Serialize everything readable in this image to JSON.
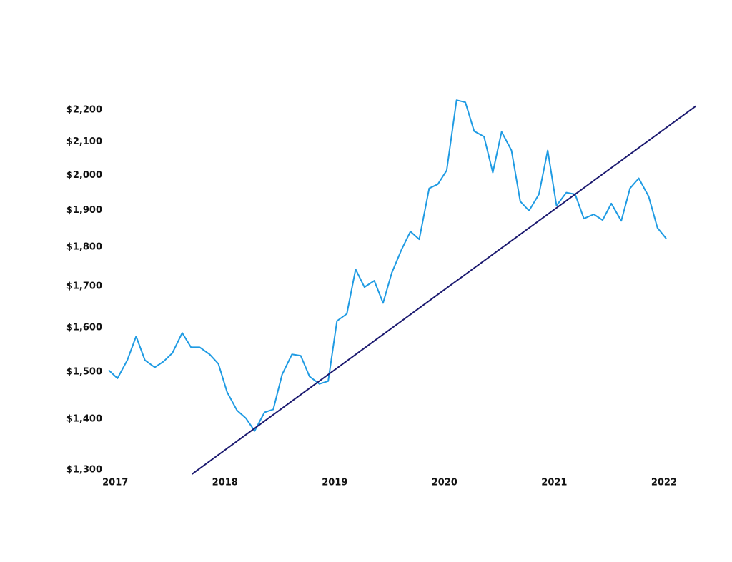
{
  "chart_data": {
    "type": "line",
    "yscale": "log",
    "xlim": [
      2016.94,
      2022.3
    ],
    "ylim": [
      1300,
      2200
    ],
    "xticks": [
      2017,
      2018,
      2019,
      2020,
      2021,
      2022
    ],
    "yticks": [
      {
        "value": 1300,
        "label": "$1,300"
      },
      {
        "value": 1400,
        "label": "$1,400"
      },
      {
        "value": 1500,
        "label": "$1,500"
      },
      {
        "value": 1600,
        "label": "$1,600"
      },
      {
        "value": 1700,
        "label": "$1,700"
      },
      {
        "value": 1800,
        "label": "$1,800"
      },
      {
        "value": 1900,
        "label": "$1,900"
      },
      {
        "value": 2000,
        "label": "$2,000"
      },
      {
        "value": 2100,
        "label": "$2,100"
      },
      {
        "value": 2200,
        "label": "$2,200"
      }
    ],
    "series": [
      {
        "color": "#1f9be3",
        "x": [
          2016.94,
          2017.02,
          2017.11,
          2017.19,
          2017.27,
          2017.36,
          2017.44,
          2017.52,
          2017.61,
          2017.69,
          2017.77,
          2017.86,
          2017.94,
          2018.02,
          2018.11,
          2018.19,
          2018.27,
          2018.36,
          2018.44,
          2018.52,
          2018.61,
          2018.69,
          2018.77,
          2018.86,
          2018.94,
          2019.02,
          2019.11,
          2019.19,
          2019.27,
          2019.36,
          2019.44,
          2019.52,
          2019.61,
          2019.69,
          2019.77,
          2019.86,
          2019.94,
          2020.02,
          2020.11,
          2020.19,
          2020.27,
          2020.36,
          2020.44,
          2020.52,
          2020.61,
          2020.69,
          2020.77,
          2020.86,
          2020.94,
          2021.02,
          2021.11,
          2021.19,
          2021.27,
          2021.36,
          2021.44,
          2021.52,
          2021.61,
          2021.69,
          2021.77,
          2021.86,
          2021.94,
          2022.02
        ],
        "values": [
          1504,
          1486,
          1526,
          1580,
          1526,
          1510,
          1523,
          1542,
          1588,
          1555,
          1555,
          1539,
          1518,
          1456,
          1418,
          1402,
          1376,
          1414,
          1420,
          1494,
          1539,
          1536,
          1490,
          1474,
          1480,
          1616,
          1633,
          1743,
          1698,
          1714,
          1659,
          1734,
          1795,
          1842,
          1821,
          1962,
          1974,
          2014,
          2232,
          2225,
          2133,
          2116,
          2008,
          2131,
          2074,
          1925,
          1899,
          1945,
          2074,
          1913,
          1950,
          1945,
          1877,
          1889,
          1873,
          1919,
          1871,
          1962,
          1991,
          1939,
          1852,
          1823
        ]
      },
      {
        "color": "#1c1a70",
        "x": [
          2017.7,
          2022.29
        ],
        "values": [
          1292,
          2213
        ]
      }
    ]
  }
}
